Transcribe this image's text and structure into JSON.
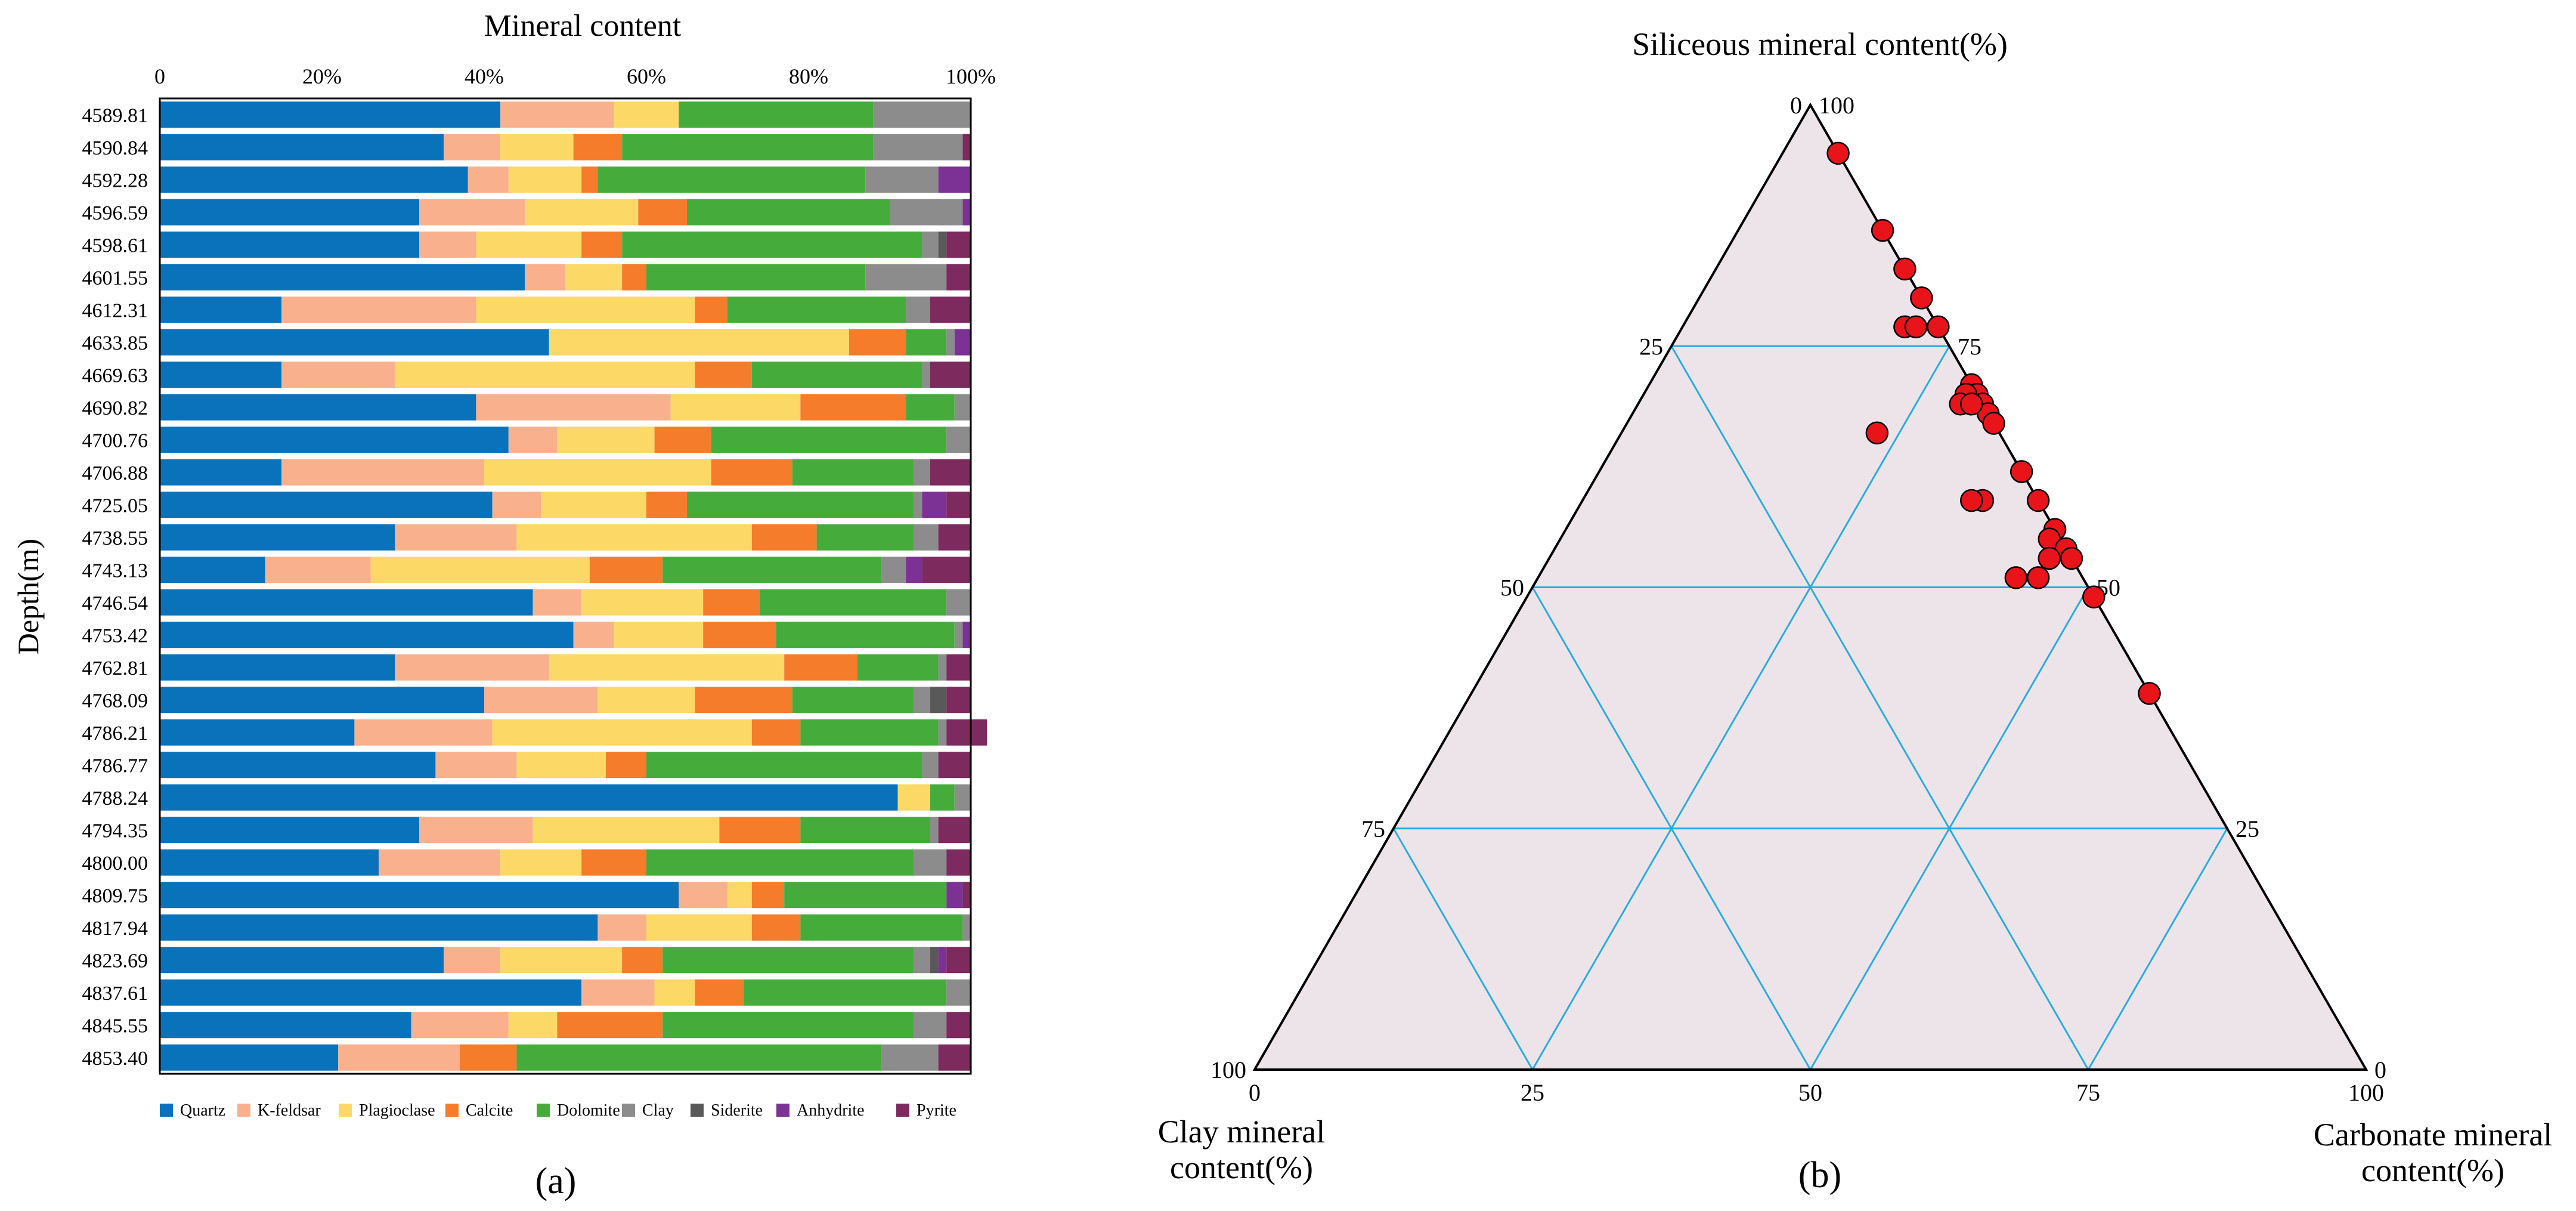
{
  "chart_data": [
    {
      "type": "bar",
      "orientation": "horizontal",
      "stacked": true,
      "panel_label": "(a)",
      "title": "Mineral content",
      "ylabel": "Depth(m)",
      "xlabel": "",
      "xlim": [
        0,
        100
      ],
      "x_ticks": [
        "0",
        "20%",
        "40%",
        "60%",
        "80%",
        "100%"
      ],
      "legend_position": "bottom",
      "categories": [
        "4589.81",
        "4590.84",
        "4592.28",
        "4596.59",
        "4598.61",
        "4601.55",
        "4612.31",
        "4633.85",
        "4669.63",
        "4690.82",
        "4700.76",
        "4706.88",
        "4725.05",
        "4738.55",
        "4743.13",
        "4746.54",
        "4753.42",
        "4762.81",
        "4768.09",
        "4786.21",
        "4786.77",
        "4788.24",
        "4794.35",
        "4800.00",
        "4809.75",
        "4817.94",
        "4823.69",
        "4837.61",
        "4845.55",
        "4853.40"
      ],
      "series": [
        {
          "name": "Quartz",
          "color": "#0A72BA",
          "values": [
            42,
            35,
            38,
            32,
            32,
            45,
            15,
            48,
            15,
            39,
            43,
            15,
            41,
            29,
            13,
            46,
            51,
            29,
            40,
            24,
            34,
            91,
            32,
            27,
            64,
            54,
            35,
            52,
            31,
            22
          ]
        },
        {
          "name": "K-feldsar",
          "color": "#F9B18D",
          "values": [
            14,
            7,
            5,
            13,
            7,
            5,
            24,
            0,
            14,
            24,
            6,
            25,
            6,
            15,
            13,
            6,
            5,
            19,
            14,
            17,
            10,
            0,
            14,
            15,
            6,
            6,
            7,
            9,
            12,
            15
          ]
        },
        {
          "name": "Plagioclase",
          "color": "#FCD866",
          "values": [
            8,
            9,
            9,
            14,
            13,
            7,
            27,
            37,
            37,
            16,
            12,
            28,
            13,
            29,
            27,
            15,
            11,
            29,
            12,
            32,
            11,
            4,
            23,
            10,
            3,
            13,
            15,
            5,
            6,
            0
          ]
        },
        {
          "name": "Calcite",
          "color": "#F47C2B",
          "values": [
            0,
            6,
            2,
            6,
            5,
            3,
            4,
            7,
            7,
            13,
            7,
            10,
            5,
            8,
            9,
            7,
            9,
            9,
            12,
            6,
            5,
            0,
            10,
            8,
            4,
            6,
            5,
            6,
            13,
            7
          ]
        },
        {
          "name": "Dolomite",
          "color": "#45AC3C",
          "values": [
            24,
            31,
            33,
            25,
            37,
            27,
            22,
            5,
            21,
            6,
            29,
            15,
            28,
            12,
            27,
            23,
            22,
            10,
            15,
            17,
            34,
            3,
            16,
            33,
            20,
            20,
            31,
            25,
            31,
            45
          ]
        },
        {
          "name": "Clay",
          "color": "#8C8C8C",
          "values": [
            12,
            11,
            9,
            9,
            2,
            10,
            3,
            1,
            1,
            2,
            3,
            2,
            1,
            3,
            3,
            3,
            1,
            1,
            2,
            1,
            2,
            2,
            1,
            4,
            0,
            1,
            2,
            3,
            4,
            7
          ]
        },
        {
          "name": "Siderite",
          "color": "#595959",
          "values": [
            0,
            0,
            0,
            0,
            1,
            0,
            0,
            0,
            0,
            0,
            0,
            0,
            0,
            0,
            0,
            0,
            0,
            0,
            2,
            0,
            0,
            0,
            0,
            0,
            0,
            0,
            1,
            0,
            0,
            0
          ]
        },
        {
          "name": "Anhydrite",
          "color": "#7B3294",
          "values": [
            0,
            0,
            4,
            1,
            0,
            0,
            0,
            2,
            0,
            0,
            0,
            0,
            3,
            0,
            2,
            0,
            1,
            0,
            0,
            0,
            0,
            0,
            0,
            0,
            2,
            0,
            1,
            0,
            0,
            0
          ]
        },
        {
          "name": "Pyrite",
          "color": "#7D2A5F",
          "values": [
            0,
            1,
            0,
            0,
            3,
            3,
            5,
            0,
            5,
            0,
            0,
            5,
            3,
            4,
            6,
            0,
            0,
            3,
            3,
            5,
            4,
            0,
            4,
            3,
            1,
            0,
            3,
            0,
            3,
            4
          ]
        }
      ]
    },
    {
      "type": "scatter",
      "subtype": "ternary",
      "panel_label": "(b)",
      "top_axis_title": "Siliceous mineral content(%)",
      "left_axis_title": "Clay mineral content(%)",
      "right_axis_title": "Carbonate mineral content(%)",
      "fill_color": "#EDE4EA",
      "grid_color": "#29ABE2",
      "point_color": "#E8141A",
      "ticks": [
        0,
        25,
        50,
        75,
        100
      ],
      "left_edge_labels": [
        "0",
        "25",
        "50",
        "75",
        "100"
      ],
      "right_edge_labels": [
        "100",
        "75",
        "50",
        "25",
        "0"
      ],
      "bottom_edge_labels": [
        "0",
        "25",
        "50",
        "75",
        "100"
      ],
      "points": [
        {
          "clay": 0,
          "carbonate": 5,
          "siliceous": 95
        },
        {
          "clay": 0,
          "carbonate": 13,
          "siliceous": 87
        },
        {
          "clay": 0,
          "carbonate": 17,
          "siliceous": 83
        },
        {
          "clay": 0,
          "carbonate": 20,
          "siliceous": 80
        },
        {
          "clay": 3,
          "carbonate": 20,
          "siliceous": 77
        },
        {
          "clay": 2,
          "carbonate": 21,
          "siliceous": 77
        },
        {
          "clay": 0,
          "carbonate": 23,
          "siliceous": 77
        },
        {
          "clay": 0,
          "carbonate": 29,
          "siliceous": 71
        },
        {
          "clay": 0,
          "carbonate": 30,
          "siliceous": 70
        },
        {
          "clay": 1,
          "carbonate": 29,
          "siliceous": 70
        },
        {
          "clay": 0,
          "carbonate": 31,
          "siliceous": 69
        },
        {
          "clay": 2,
          "carbonate": 29,
          "siliceous": 69
        },
        {
          "clay": 0,
          "carbonate": 32,
          "siliceous": 68
        },
        {
          "clay": 1,
          "carbonate": 30,
          "siliceous": 68
        },
        {
          "clay": 0,
          "carbonate": 33,
          "siliceous": 67
        },
        {
          "clay": 11,
          "carbonate": 23,
          "siliceous": 66
        },
        {
          "clay": 0,
          "carbonate": 38,
          "siliceous": 62
        },
        {
          "clay": 0,
          "carbonate": 41,
          "siliceous": 59
        },
        {
          "clay": 5,
          "carbonate": 36,
          "siliceous": 59
        },
        {
          "clay": 6,
          "carbonate": 35,
          "siliceous": 58
        },
        {
          "clay": 0,
          "carbonate": 44,
          "siliceous": 56
        },
        {
          "clay": 1,
          "carbonate": 44,
          "siliceous": 55
        },
        {
          "clay": 0,
          "carbonate": 46,
          "siliceous": 54
        },
        {
          "clay": 0,
          "carbonate": 47,
          "siliceous": 53
        },
        {
          "clay": 2,
          "carbonate": 45,
          "siliceous": 53
        },
        {
          "clay": 4,
          "carbonate": 45,
          "siliceous": 51
        },
        {
          "clay": 6,
          "carbonate": 43,
          "siliceous": 51
        },
        {
          "clay": 0,
          "carbonate": 51,
          "siliceous": 49
        },
        {
          "clay": 0,
          "carbonate": 61,
          "siliceous": 39
        }
      ]
    }
  ]
}
